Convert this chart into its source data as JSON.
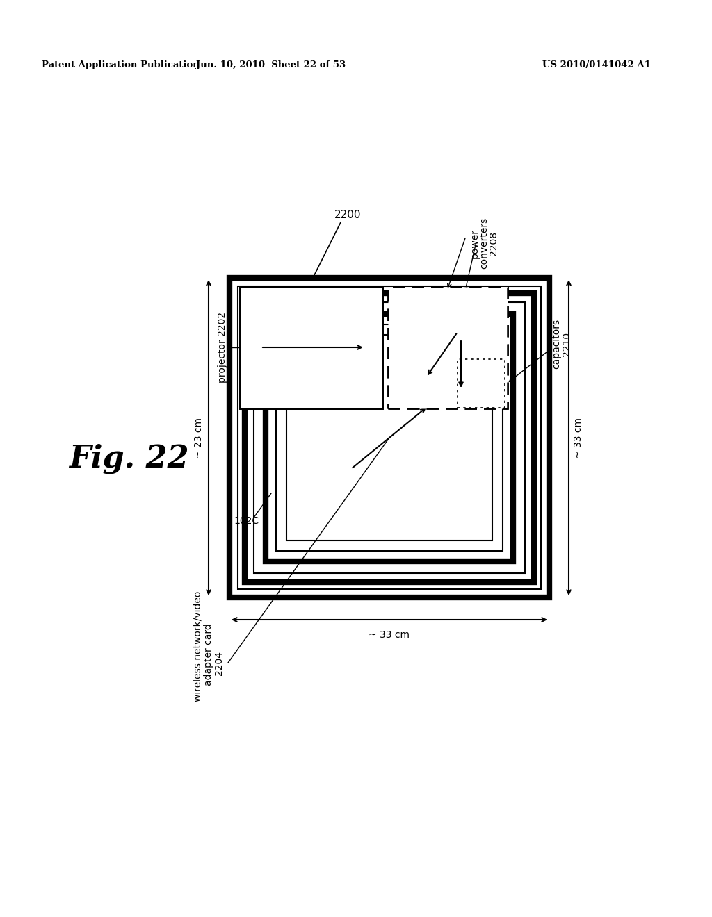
{
  "bg_color": "#ffffff",
  "header_left": "Patent Application Publication",
  "header_center": "Jun. 10, 2010  Sheet 22 of 53",
  "header_right": "US 2010/0141042 A1",
  "label_2200": "2200",
  "label_projector": "projector 2202",
  "label_power_l1": "power",
  "label_power_l2": "converters",
  "label_power_l3": "2208",
  "label_cap_l1": "capacitors",
  "label_cap_l2": "2210",
  "label_102C": "102C",
  "label_23cm": "~ 23 cm",
  "label_33cm_h": "~ 33 cm",
  "label_33cm_v": "~ 33 cm",
  "label_wireless_l1": "wireless network/video",
  "label_wireless_l2": "adapter card",
  "label_wireless_l3": "2204",
  "fig_label": "Fig. 22"
}
